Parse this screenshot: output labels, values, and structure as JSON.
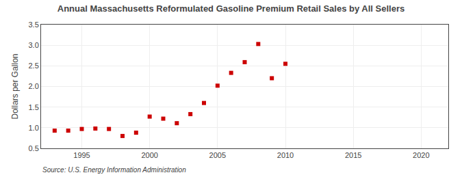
{
  "chart_data": {
    "type": "scatter",
    "title": "Annual Massachusetts Reformulated Gasoline Premium Retail Sales by All Sellers",
    "ylabel": "Dollars per Gallon",
    "annotation": "Source: U.S. Energy Information Administration",
    "x": [
      1993,
      1994,
      1995,
      1996,
      1997,
      1998,
      1999,
      2000,
      2001,
      2002,
      2003,
      2004,
      2005,
      2006,
      2007,
      2008,
      2009,
      2010
    ],
    "values": [
      0.93,
      0.93,
      0.97,
      0.98,
      0.97,
      0.8,
      0.88,
      1.27,
      1.22,
      1.11,
      1.33,
      1.6,
      2.02,
      2.33,
      2.59,
      3.03,
      2.2,
      2.55
    ],
    "color": "#cc0000",
    "marker": "square",
    "xlim": [
      1992,
      2022
    ],
    "ylim": [
      0.5,
      3.5
    ],
    "xticks": [
      1995,
      2000,
      2005,
      2010,
      2015,
      2020
    ],
    "yticks": [
      0.5,
      {
        "value": 1.0,
        "label": "1.0"
      },
      1.5,
      {
        "value": 2.0,
        "label": "2.0"
      },
      2.5,
      {
        "value": 3.0,
        "label": "3.0"
      },
      3.5
    ],
    "grid": true
  }
}
